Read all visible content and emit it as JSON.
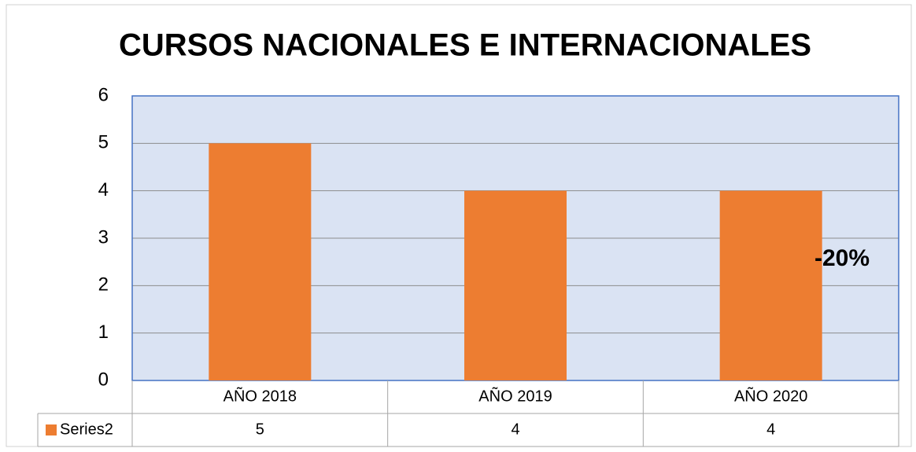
{
  "chart_data": {
    "type": "bar",
    "title": "CURSOS NACIONALES E INTERNACIONALES",
    "categories": [
      "AÑO 2018",
      "AÑO 2019",
      "AÑO 2020"
    ],
    "series": [
      {
        "name": "Series2",
        "color": "#ed7d31",
        "values": [
          5,
          4,
          4
        ]
      }
    ],
    "ylim": [
      0,
      6
    ],
    "yticks": [
      0,
      1,
      2,
      3,
      4,
      5,
      6
    ],
    "grid": true,
    "annotations": [
      "-20%"
    ],
    "data_table": true
  }
}
